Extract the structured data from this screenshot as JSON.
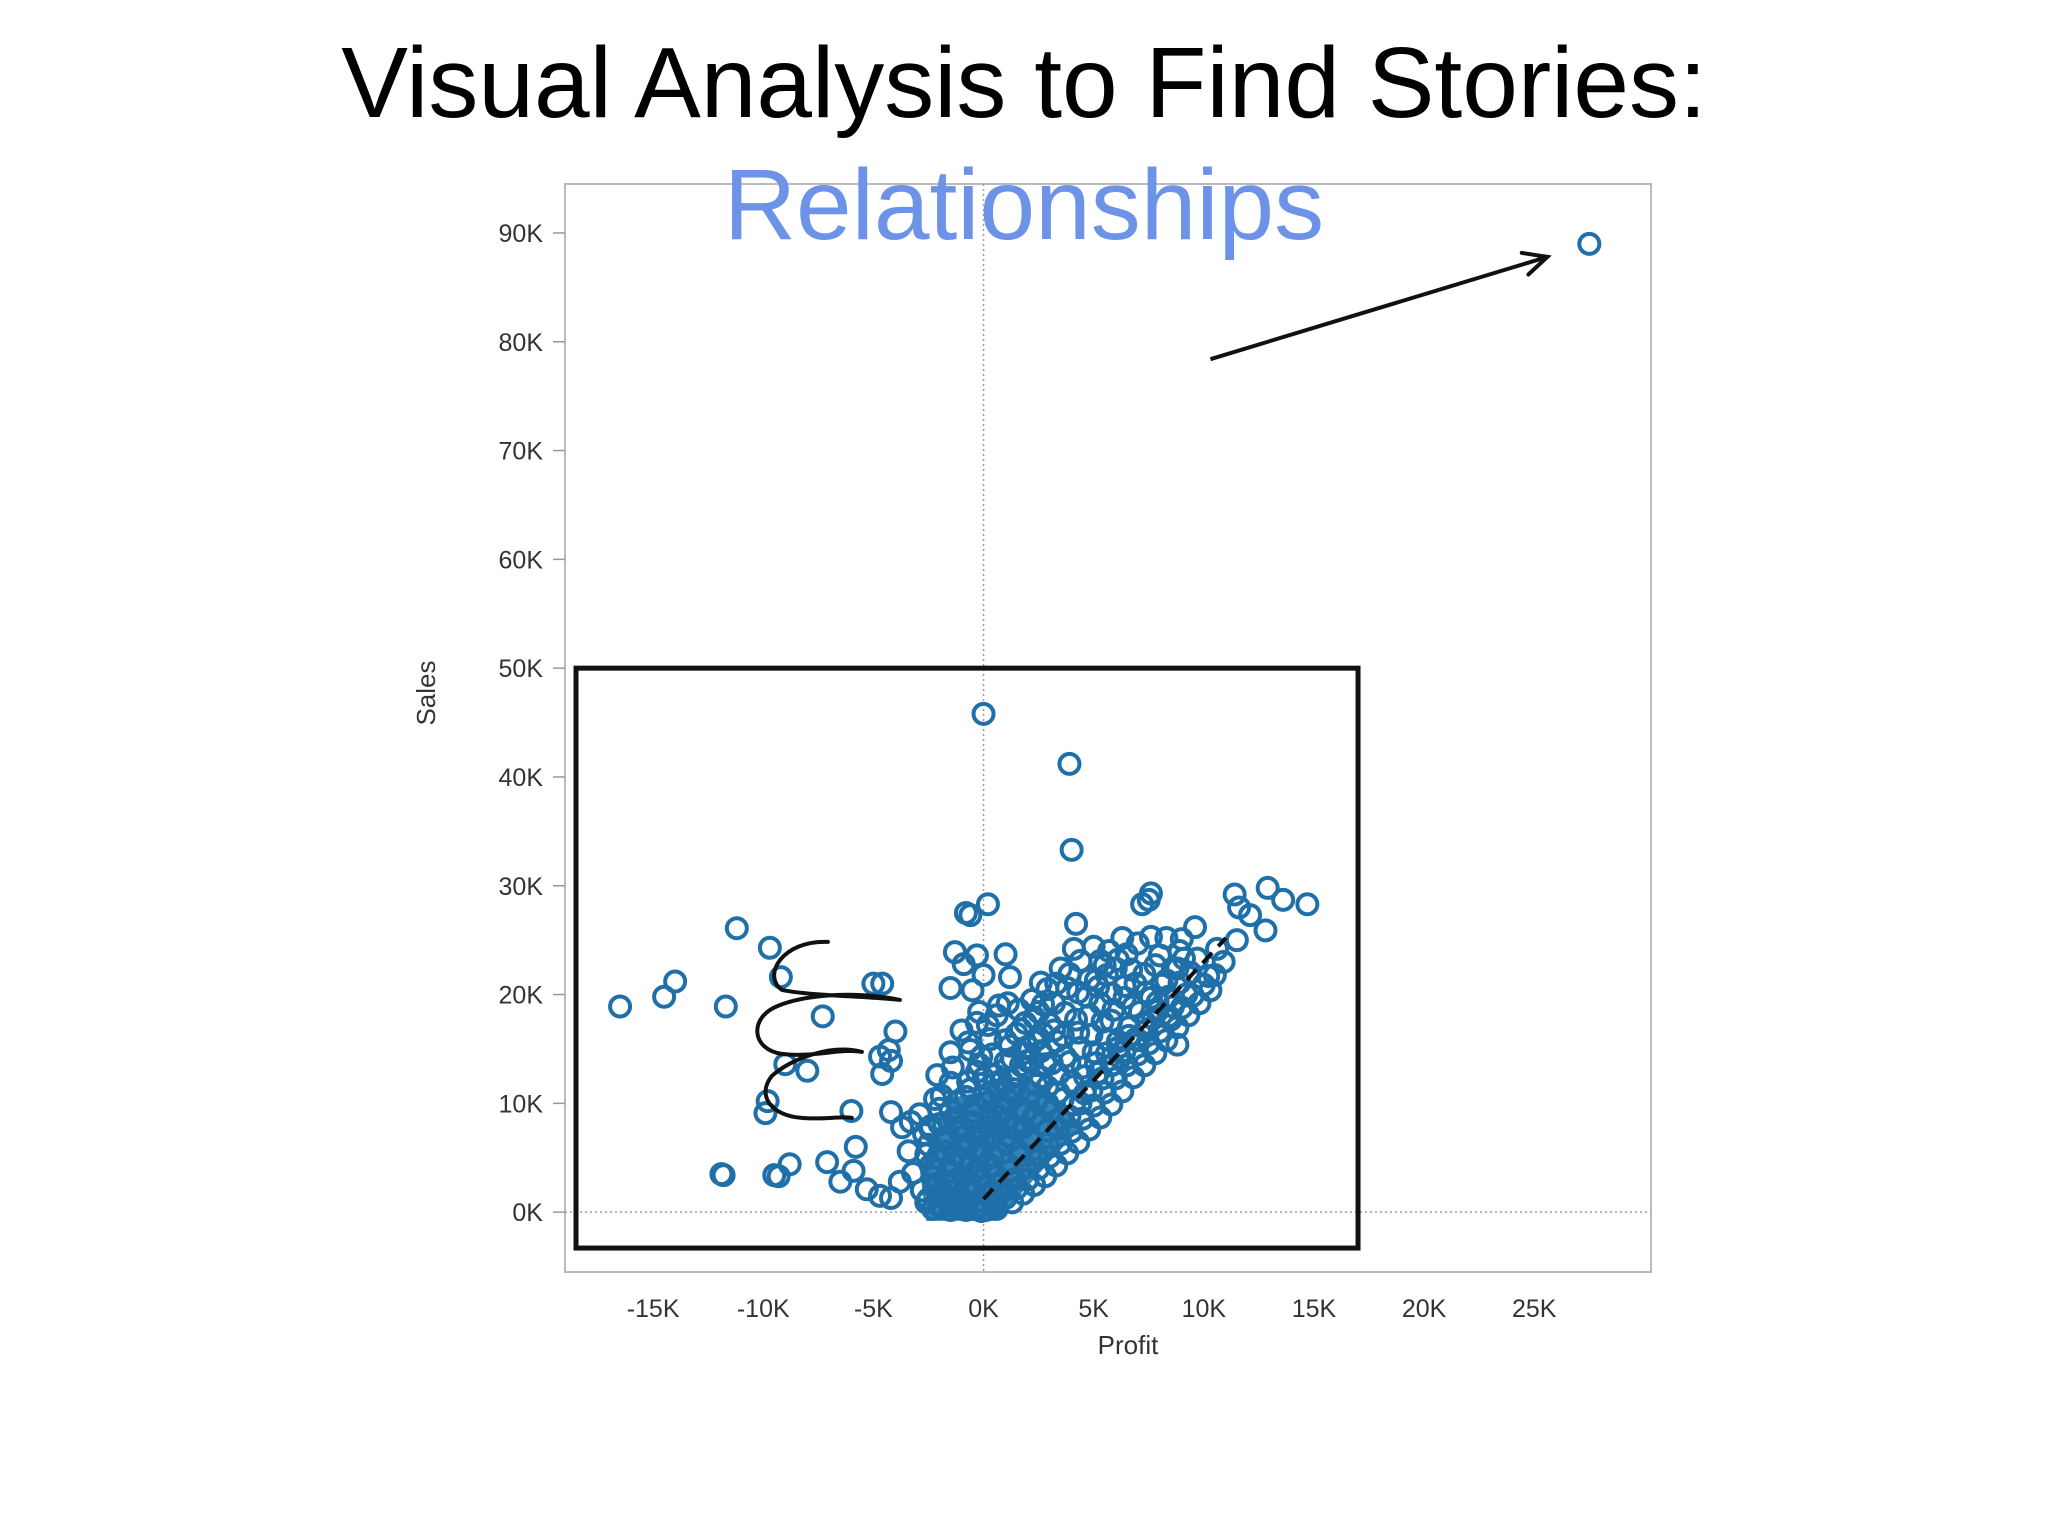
{
  "slide": {
    "title": "Visual Analysis to Find Stories:",
    "subtitle": "Relationships",
    "subtitle_color": "#6d93e8"
  },
  "colors": {
    "marker": "#1f6fa8",
    "marker_fill": "#2a7bb5",
    "axis": "#bbbbbb",
    "annotation": "#111111"
  },
  "chart_data": {
    "type": "scatter",
    "xlabel": "Profit",
    "ylabel": "Sales",
    "xlim": [
      -19000,
      30300
    ],
    "ylim": [
      -5500,
      94500
    ],
    "x_ticks": [
      {
        "value": -15000,
        "label": "-15K"
      },
      {
        "value": -10000,
        "label": "-10K"
      },
      {
        "value": -5000,
        "label": "-5K"
      },
      {
        "value": 0,
        "label": "0K"
      },
      {
        "value": 5000,
        "label": "5K"
      },
      {
        "value": 10000,
        "label": "10K"
      },
      {
        "value": 15000,
        "label": "15K"
      },
      {
        "value": 20000,
        "label": "20K"
      },
      {
        "value": 25000,
        "label": "25K"
      }
    ],
    "y_ticks": [
      {
        "value": 0,
        "label": "0K"
      },
      {
        "value": 10000,
        "label": "10K"
      },
      {
        "value": 20000,
        "label": "20K"
      },
      {
        "value": 30000,
        "label": "30K"
      },
      {
        "value": 40000,
        "label": "40K"
      },
      {
        "value": 50000,
        "label": "50K"
      },
      {
        "value": 60000,
        "label": "60K"
      },
      {
        "value": 70000,
        "label": "70K"
      },
      {
        "value": 80000,
        "label": "80K"
      },
      {
        "value": 90000,
        "label": "90K"
      }
    ],
    "reference_lines": [
      {
        "axis": "x",
        "value": 0
      },
      {
        "axis": "y",
        "value": 0
      }
    ],
    "points": [
      [
        27500,
        89000
      ],
      [
        0,
        45800
      ],
      [
        3900,
        41200
      ],
      [
        4000,
        33300
      ],
      [
        4200,
        26500
      ],
      [
        4100,
        24200
      ],
      [
        -16500,
        18900
      ],
      [
        -14500,
        19800
      ],
      [
        -14000,
        21200
      ],
      [
        -11700,
        18900
      ],
      [
        -11200,
        26100
      ],
      [
        -9700,
        24300
      ],
      [
        -9200,
        21600
      ],
      [
        -7300,
        18000
      ],
      [
        -5000,
        21000
      ],
      [
        -4600,
        21000
      ],
      [
        -4000,
        16600
      ],
      [
        -4300,
        14900
      ],
      [
        -4200,
        13900
      ],
      [
        -4600,
        12700
      ],
      [
        -4700,
        14300
      ],
      [
        -9000,
        13600
      ],
      [
        -8000,
        13000
      ],
      [
        -9800,
        10200
      ],
      [
        -9900,
        9100
      ],
      [
        -6000,
        9300
      ],
      [
        -5800,
        6000
      ],
      [
        -5900,
        3800
      ],
      [
        -6500,
        2800
      ],
      [
        -7100,
        4600
      ],
      [
        -8800,
        4400
      ],
      [
        -9300,
        3300
      ],
      [
        -9500,
        3400
      ],
      [
        -11800,
        3400
      ],
      [
        -11900,
        3500
      ],
      [
        -5300,
        2100
      ],
      [
        -4700,
        1500
      ],
      [
        -4200,
        1300
      ],
      [
        -3800,
        2800
      ],
      [
        -3200,
        3600
      ],
      [
        -3400,
        5600
      ],
      [
        -3700,
        7800
      ],
      [
        -4200,
        9200
      ],
      [
        -2400,
        7600
      ],
      [
        -2200,
        10400
      ],
      [
        -2100,
        12600
      ],
      [
        -1500,
        14700
      ],
      [
        -600,
        14900
      ],
      [
        200,
        17200
      ],
      [
        -200,
        18400
      ],
      [
        700,
        19000
      ],
      [
        -500,
        20400
      ],
      [
        -1500,
        20600
      ],
      [
        -900,
        22800
      ],
      [
        0,
        21800
      ],
      [
        -1300,
        23900
      ],
      [
        -300,
        23600
      ],
      [
        1000,
        23700
      ],
      [
        1200,
        21600
      ],
      [
        -800,
        27500
      ],
      [
        -600,
        27300
      ],
      [
        200,
        28300
      ],
      [
        1100,
        19200
      ],
      [
        1900,
        17400
      ],
      [
        2500,
        18400
      ],
      [
        2900,
        20500
      ],
      [
        3800,
        20600
      ],
      [
        5200,
        20700
      ],
      [
        5600,
        21800
      ],
      [
        6000,
        22400
      ],
      [
        6500,
        23700
      ],
      [
        7000,
        24700
      ],
      [
        7600,
        25300
      ],
      [
        8300,
        25200
      ],
      [
        9000,
        25100
      ],
      [
        9600,
        26200
      ],
      [
        7500,
        28700
      ],
      [
        7600,
        29300
      ],
      [
        7200,
        28300
      ],
      [
        11400,
        29200
      ],
      [
        11600,
        28000
      ],
      [
        12100,
        27300
      ],
      [
        12900,
        29800
      ],
      [
        13600,
        28700
      ],
      [
        14700,
        28300
      ],
      [
        12800,
        25900
      ],
      [
        11500,
        25000
      ],
      [
        10900,
        23000
      ],
      [
        10200,
        21700
      ],
      [
        8800,
        22400
      ],
      [
        8300,
        21300
      ],
      [
        9200,
        20000
      ],
      [
        8600,
        18900
      ],
      [
        7700,
        17800
      ],
      [
        7400,
        16700
      ],
      [
        7000,
        15800
      ],
      [
        8800,
        15400
      ],
      [
        6200,
        14200
      ],
      [
        5800,
        13500
      ],
      [
        5200,
        12800
      ],
      [
        4600,
        10900
      ],
      [
        4100,
        9900
      ],
      [
        3500,
        8500
      ],
      [
        2900,
        7500
      ],
      [
        2200,
        6500
      ],
      [
        1700,
        5200
      ],
      [
        1200,
        3800
      ],
      [
        700,
        2500
      ],
      [
        300,
        1500
      ],
      [
        -300,
        1000
      ],
      [
        -900,
        800
      ],
      [
        -1500,
        600
      ],
      [
        -2000,
        1500
      ],
      [
        -2300,
        3200
      ],
      [
        -1800,
        5600
      ],
      [
        -1100,
        7400
      ],
      [
        -400,
        9800
      ],
      [
        0,
        12300
      ],
      [
        500,
        11800
      ],
      [
        900,
        9400
      ],
      [
        1400,
        11300
      ],
      [
        1900,
        13200
      ],
      [
        2400,
        11700
      ],
      [
        2800,
        13600
      ],
      [
        3300,
        15700
      ],
      [
        3700,
        14300
      ],
      [
        4300,
        16500
      ],
      [
        4800,
        18100
      ],
      [
        5300,
        19200
      ],
      [
        5800,
        17600
      ],
      [
        6400,
        19700
      ],
      [
        6900,
        21000
      ],
      [
        7400,
        20200
      ],
      [
        7900,
        19300
      ],
      [
        8400,
        18000
      ],
      [
        6600,
        16200
      ],
      [
        6100,
        15100
      ],
      [
        5600,
        15900
      ],
      [
        5000,
        14700
      ],
      [
        4500,
        13300
      ],
      [
        4000,
        12000
      ],
      [
        3400,
        11000
      ],
      [
        2900,
        10000
      ],
      [
        2300,
        8900
      ],
      [
        1800,
        7800
      ],
      [
        1300,
        6700
      ],
      [
        800,
        5400
      ],
      [
        300,
        4300
      ],
      [
        -200,
        3300
      ],
      [
        -700,
        2300
      ],
      [
        -1200,
        2000
      ],
      [
        -1700,
        2600
      ],
      [
        -2500,
        1200
      ],
      [
        -1400,
        4500
      ],
      [
        -800,
        5900
      ],
      [
        -300,
        6900
      ],
      [
        200,
        7900
      ],
      [
        600,
        9000
      ],
      [
        1100,
        10300
      ],
      [
        1600,
        9600
      ],
      [
        2100,
        11000
      ],
      [
        2600,
        12400
      ],
      [
        3100,
        13700
      ],
      [
        3600,
        16200
      ],
      [
        4200,
        17700
      ],
      [
        4700,
        19800
      ],
      [
        5100,
        21300
      ],
      [
        5500,
        22700
      ],
      [
        6100,
        23200
      ],
      [
        6700,
        22300
      ],
      [
        3000,
        17300
      ],
      [
        2000,
        15200
      ],
      [
        1000,
        13800
      ],
      [
        -100,
        14300
      ],
      [
        -1000,
        16700
      ],
      [
        1500,
        16400
      ],
      [
        2500,
        16000
      ],
      [
        -2600,
        5300
      ],
      [
        -2700,
        7200
      ],
      [
        -200,
        500
      ],
      [
        500,
        600
      ],
      [
        1000,
        1300
      ],
      [
        1500,
        2200
      ],
      [
        2000,
        3000
      ],
      [
        2500,
        4000
      ],
      [
        3000,
        5100
      ],
      [
        3500,
        6300
      ],
      [
        4000,
        7400
      ],
      [
        4500,
        8600
      ],
      [
        5000,
        9800
      ],
      [
        5500,
        11000
      ],
      [
        6000,
        12300
      ],
      [
        6500,
        13500
      ],
      [
        7000,
        14500
      ],
      [
        7500,
        15500
      ],
      [
        8000,
        16600
      ],
      [
        8500,
        17700
      ],
      [
        9000,
        18800
      ],
      [
        9500,
        19900
      ],
      [
        10000,
        20900
      ],
      [
        10500,
        21800
      ],
      [
        9700,
        23300
      ],
      [
        10600,
        24200
      ],
      [
        8000,
        23600
      ],
      [
        8900,
        24000
      ],
      [
        -1000,
        400
      ],
      [
        -2000,
        700
      ],
      [
        -2800,
        2000
      ],
      [
        -2400,
        4300
      ],
      [
        -1800,
        6500
      ],
      [
        -1300,
        8600
      ],
      [
        -600,
        11300
      ],
      [
        -1500,
        11900
      ],
      [
        -2000,
        9500
      ],
      [
        -2900,
        9000
      ],
      [
        -3300,
        8300
      ],
      [
        -1900,
        400
      ],
      [
        -1100,
        1200
      ],
      [
        -400,
        1800
      ],
      [
        100,
        2400
      ],
      [
        600,
        3300
      ],
      [
        1100,
        4400
      ],
      [
        1600,
        5600
      ],
      [
        2100,
        6800
      ],
      [
        2600,
        8100
      ],
      [
        3100,
        9300
      ],
      [
        3600,
        10400
      ],
      [
        4100,
        11600
      ],
      [
        4600,
        12500
      ],
      [
        5100,
        13700
      ],
      [
        5600,
        14600
      ],
      [
        6100,
        15700
      ],
      [
        6600,
        17000
      ],
      [
        7100,
        18400
      ],
      [
        7600,
        19700
      ],
      [
        8100,
        20900
      ],
      [
        8600,
        22400
      ],
      [
        9100,
        23300
      ],
      [
        -1600,
        3700
      ],
      [
        -900,
        4900
      ],
      [
        -500,
        8300
      ],
      [
        400,
        14500
      ],
      [
        1200,
        15300
      ],
      [
        2300,
        17900
      ],
      [
        3200,
        19200
      ],
      [
        3900,
        21900
      ],
      [
        4400,
        23100
      ],
      [
        5000,
        24400
      ],
      [
        5700,
        24000
      ],
      [
        6300,
        25200
      ],
      [
        -2200,
        2300
      ],
      [
        -300,
        3900
      ],
      [
        400,
        5200
      ],
      [
        900,
        6500
      ],
      [
        1400,
        7700
      ],
      [
        1900,
        9100
      ],
      [
        2400,
        10200
      ],
      [
        2900,
        11500
      ],
      [
        3400,
        12700
      ],
      [
        3900,
        13800
      ],
      [
        4400,
        15100
      ],
      [
        4900,
        16300
      ],
      [
        5400,
        17500
      ],
      [
        5900,
        18600
      ],
      [
        6400,
        20800
      ],
      [
        6800,
        18900
      ],
      [
        7300,
        21900
      ],
      [
        7800,
        22700
      ],
      [
        -1400,
        1000
      ],
      [
        -600,
        2700
      ],
      [
        -100,
        5400
      ],
      [
        300,
        6700
      ],
      [
        700,
        7600
      ],
      [
        1100,
        8500
      ],
      [
        1500,
        12600
      ],
      [
        2000,
        13900
      ],
      [
        2600,
        14800
      ],
      [
        3200,
        16700
      ],
      [
        3700,
        18300
      ],
      [
        4300,
        20200
      ],
      [
        4800,
        21400
      ],
      [
        5300,
        23100
      ],
      [
        5800,
        20100
      ],
      [
        -2500,
        6200
      ],
      [
        -2000,
        8100
      ],
      [
        -1500,
        9300
      ],
      [
        -800,
        10600
      ],
      [
        -300,
        12900
      ],
      [
        300,
        11000
      ],
      [
        800,
        12100
      ],
      [
        1300,
        14100
      ],
      [
        1800,
        14600
      ],
      [
        2300,
        15700
      ],
      [
        -400,
        300
      ],
      [
        100,
        200
      ],
      [
        600,
        300
      ],
      [
        1300,
        900
      ],
      [
        1800,
        1700
      ],
      [
        2300,
        2500
      ],
      [
        2800,
        3300
      ],
      [
        3300,
        4300
      ],
      [
        3800,
        5400
      ],
      [
        4300,
        6400
      ],
      [
        4800,
        7600
      ],
      [
        5300,
        8700
      ],
      [
        5800,
        9900
      ],
      [
        6300,
        11100
      ],
      [
        6800,
        12400
      ],
      [
        7300,
        13500
      ],
      [
        7800,
        14600
      ],
      [
        8300,
        15800
      ],
      [
        8800,
        17000
      ],
      [
        9300,
        18100
      ],
      [
        9800,
        19200
      ],
      [
        10300,
        20400
      ],
      [
        -1700,
        1500
      ],
      [
        -1200,
        3000
      ],
      [
        -700,
        4100
      ],
      [
        -200,
        6000
      ],
      [
        300,
        8600
      ],
      [
        800,
        10000
      ],
      [
        1300,
        10900
      ],
      [
        -2100,
        5000
      ],
      [
        -1600,
        6900
      ],
      [
        -1000,
        7900
      ],
      [
        -500,
        9200
      ],
      [
        0,
        10600
      ],
      [
        500,
        12600
      ],
      [
        1000,
        15800
      ],
      [
        1700,
        16800
      ],
      [
        2200,
        19500
      ],
      [
        2700,
        19100
      ],
      [
        3300,
        21000
      ],
      [
        -2300,
        300
      ],
      [
        -1500,
        200
      ],
      [
        -800,
        200
      ],
      [
        -100,
        100
      ],
      [
        400,
        900
      ],
      [
        900,
        2000
      ],
      [
        1400,
        3000
      ],
      [
        1900,
        4100
      ],
      [
        2400,
        5300
      ],
      [
        2900,
        6300
      ],
      [
        3400,
        7700
      ],
      [
        3900,
        8800
      ],
      [
        4400,
        10000
      ],
      [
        4900,
        11200
      ],
      [
        5400,
        12300
      ],
      [
        5900,
        13600
      ],
      [
        6400,
        14800
      ],
      [
        6900,
        15900
      ],
      [
        7400,
        17300
      ],
      [
        7900,
        18500
      ],
      [
        8400,
        19800
      ],
      [
        8900,
        21100
      ],
      [
        9400,
        22000
      ],
      [
        -2600,
        900
      ],
      [
        -2200,
        3900
      ],
      [
        -1300,
        5300
      ],
      [
        -700,
        6300
      ],
      [
        -200,
        7500
      ],
      [
        200,
        10100
      ],
      [
        700,
        11200
      ],
      [
        1200,
        12300
      ],
      [
        1700,
        13500
      ],
      [
        2200,
        14000
      ],
      [
        2700,
        16400
      ],
      [
        -1800,
        8200
      ],
      [
        -1200,
        10100
      ],
      [
        -700,
        12000
      ],
      [
        -200,
        13600
      ],
      [
        300,
        15900
      ],
      [
        -2400,
        7900
      ],
      [
        -1900,
        10700
      ],
      [
        -1400,
        13300
      ],
      [
        -700,
        15600
      ],
      [
        -300,
        17400
      ],
      [
        600,
        18100
      ],
      [
        1600,
        18600
      ],
      [
        2600,
        21100
      ],
      [
        3500,
        22400
      ]
    ],
    "annotations": {
      "highlight_box": {
        "x0": -18500,
        "x1": 17000,
        "y0": -3300,
        "y1": 50000
      },
      "arrow": {
        "from": [
          10300,
          78400
        ],
        "to": [
          25600,
          87800
        ]
      },
      "trend_line": {
        "from": [
          0,
          1200
        ],
        "to": [
          11000,
          25200
        ]
      },
      "scribble": {
        "center": [
          -8700,
          16200
        ]
      }
    }
  }
}
